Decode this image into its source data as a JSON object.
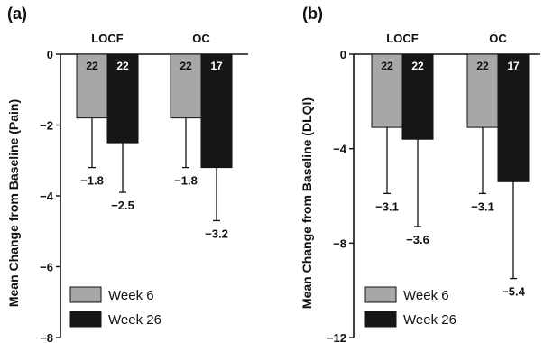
{
  "colors": {
    "week6": "#a7a7a7",
    "week26": "#161616",
    "axis": "#111111"
  },
  "chart_data": [
    {
      "type": "bar",
      "panel_label": "(a)",
      "ylabel": "Mean Change from Baseline (Pain)",
      "ylim": [
        -8,
        0
      ],
      "yticks": [
        0,
        -2,
        -4,
        -6,
        -8
      ],
      "ytick_labels": [
        "0",
        "−2",
        "−4",
        "−6",
        "−8"
      ],
      "groups": [
        "LOCF",
        "OC"
      ],
      "legend_position": "bottom-left",
      "series": [
        {
          "name": "Week 6",
          "color_key": "week6",
          "values": [
            -1.8,
            -1.8
          ],
          "value_labels": [
            "−1.8",
            "−1.8"
          ],
          "error_lower": [
            -3.2,
            -3.2
          ],
          "n": [
            "22",
            "22"
          ]
        },
        {
          "name": "Week 26",
          "color_key": "week26",
          "values": [
            -2.5,
            -3.2
          ],
          "value_labels": [
            "−2.5",
            "−3.2"
          ],
          "error_lower": [
            -3.9,
            -4.7
          ],
          "n": [
            "22",
            "17"
          ]
        }
      ]
    },
    {
      "type": "bar",
      "panel_label": "(b)",
      "ylabel": "Mean Change from Baseline (DLQI)",
      "ylim": [
        -12,
        0
      ],
      "yticks": [
        0,
        -4,
        -8,
        -12
      ],
      "ytick_labels": [
        "0",
        "−4",
        "−8",
        "−12"
      ],
      "groups": [
        "LOCF",
        "OC"
      ],
      "legend_position": "bottom-left",
      "series": [
        {
          "name": "Week 6",
          "color_key": "week6",
          "values": [
            -3.1,
            -3.1
          ],
          "value_labels": [
            "−3.1",
            "−3.1"
          ],
          "error_lower": [
            -5.9,
            -5.9
          ],
          "n": [
            "22",
            "22"
          ]
        },
        {
          "name": "Week 26",
          "color_key": "week26",
          "values": [
            -3.6,
            -5.4
          ],
          "value_labels": [
            "−3.6",
            "−5.4"
          ],
          "error_lower": [
            -7.3,
            -9.5
          ],
          "n": [
            "22",
            "17"
          ]
        }
      ]
    }
  ]
}
